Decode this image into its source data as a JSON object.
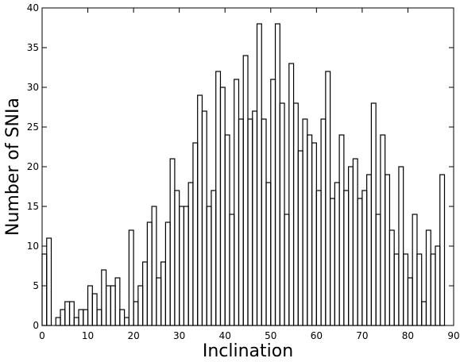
{
  "chart_data": {
    "type": "bar",
    "style": "step-histogram",
    "xlabel": "Inclination",
    "ylabel": "Number of SNIa",
    "xlim": [
      0,
      90
    ],
    "ylim": [
      0,
      40
    ],
    "xticks": [
      0,
      10,
      20,
      30,
      40,
      50,
      60,
      70,
      80,
      90
    ],
    "yticks": [
      0,
      5,
      10,
      15,
      20,
      25,
      30,
      35,
      40
    ],
    "bin_width": 1,
    "bin_start": 0,
    "grid": false,
    "legend": "none",
    "line_color": "#000000",
    "values": [
      9,
      11,
      0,
      1,
      2,
      3,
      3,
      1,
      2,
      2,
      5,
      4,
      2,
      7,
      5,
      5,
      6,
      2,
      1,
      12,
      3,
      5,
      8,
      13,
      15,
      6,
      8,
      13,
      21,
      17,
      15,
      15,
      18,
      23,
      29,
      27,
      15,
      17,
      32,
      30,
      24,
      14,
      31,
      26,
      34,
      26,
      27,
      38,
      26,
      18,
      31,
      38,
      28,
      14,
      33,
      28,
      22,
      26,
      24,
      23,
      17,
      26,
      32,
      16,
      18,
      24,
      17,
      20,
      21,
      16,
      17,
      19,
      28,
      14,
      24,
      19,
      12,
      9,
      20,
      9,
      6,
      14,
      9,
      3,
      12,
      9,
      10,
      19,
      0
    ]
  }
}
